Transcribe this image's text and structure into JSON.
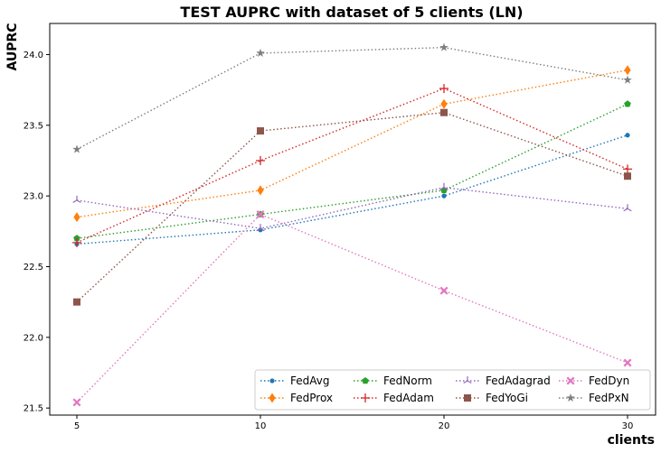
{
  "chart_data": {
    "type": "line",
    "title": "TEST AUPRC with dataset of 5 clients (LN)",
    "xlabel": "clients",
    "ylabel": "AUPRC",
    "x": [
      5,
      10,
      20,
      30
    ],
    "xticks": [
      "5",
      "10",
      "20",
      "30"
    ],
    "yticks": [
      "21.5",
      "22.0",
      "22.5",
      "23.0",
      "23.5",
      "24.0"
    ],
    "ylim": [
      21.45,
      24.22
    ],
    "grid": false,
    "legend_position": "lower-right",
    "series": [
      {
        "name": "FedAvg",
        "color": "#1f77b4",
        "marker": "dot",
        "values": [
          22.66,
          22.76,
          23.0,
          23.43
        ]
      },
      {
        "name": "FedProx",
        "color": "#ff7f0e",
        "marker": "diamond",
        "values": [
          22.85,
          23.04,
          23.65,
          23.89
        ]
      },
      {
        "name": "FedNorm",
        "color": "#2ca02c",
        "marker": "pentagon",
        "values": [
          22.7,
          22.87,
          23.04,
          23.65
        ]
      },
      {
        "name": "FedAdam",
        "color": "#d62728",
        "marker": "plus",
        "values": [
          22.67,
          23.25,
          23.76,
          23.19
        ]
      },
      {
        "name": "FedAdagrad",
        "color": "#9467bd",
        "marker": "tri",
        "values": [
          22.97,
          22.77,
          23.06,
          22.91
        ]
      },
      {
        "name": "FedYoGi",
        "color": "#8c564b",
        "marker": "square",
        "values": [
          22.25,
          23.46,
          23.59,
          23.14
        ]
      },
      {
        "name": "FedDyn",
        "color": "#e377c2",
        "marker": "xfilled",
        "values": [
          21.54,
          22.87,
          22.33,
          21.82
        ]
      },
      {
        "name": "FedPxN",
        "color": "#7f7f7f",
        "marker": "star",
        "values": [
          23.33,
          24.01,
          24.05,
          23.82
        ]
      }
    ]
  }
}
